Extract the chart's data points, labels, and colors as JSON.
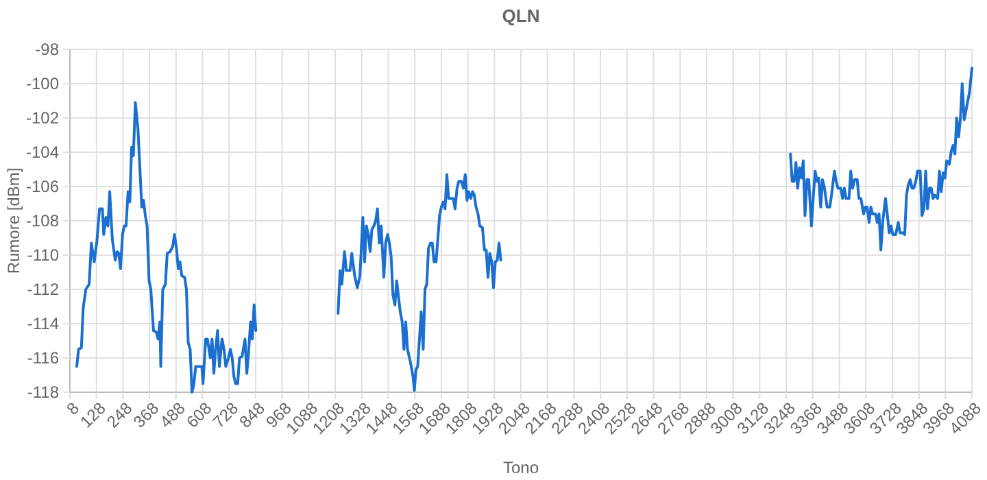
{
  "chart_data": {
    "type": "line",
    "title": "QLN",
    "xlabel": "Tono",
    "ylabel": "Rumore [dBm]",
    "xlim": [
      8,
      4088
    ],
    "xticks": [
      8,
      128,
      248,
      368,
      488,
      608,
      728,
      848,
      968,
      1088,
      1208,
      1328,
      1448,
      1568,
      1688,
      1808,
      1928,
      2048,
      2168,
      2288,
      2408,
      2528,
      2648,
      2768,
      2888,
      3008,
      3128,
      3248,
      3368,
      3488,
      3608,
      3728,
      3848,
      3968,
      4088
    ],
    "ylim": [
      -118,
      -98
    ],
    "yticks": [
      -118,
      -116,
      -114,
      -112,
      -110,
      -108,
      -106,
      -104,
      -102,
      -100,
      -98
    ],
    "grid": true,
    "marker": "none",
    "line_style": "solid",
    "series": [
      {
        "color": "#1a6fd0",
        "x": [
          39,
          47,
          60,
          68,
          80,
          95,
          105,
          118,
          130,
          142,
          155,
          161,
          171,
          180,
          188,
          200,
          213,
          221,
          229,
          237,
          246,
          254,
          262,
          271,
          279,
          287,
          295,
          304,
          316,
          324,
          333,
          341,
          349,
          357,
          366,
          374,
          386,
          399,
          407,
          415,
          419,
          428,
          440,
          448,
          461,
          473,
          481,
          490,
          498,
          506,
          514,
          527,
          535,
          543,
          552,
          560,
          568,
          577,
          593,
          605,
          610,
          622,
          630,
          643,
          651,
          659,
          667,
          676,
          684,
          696,
          705,
          713,
          725,
          734,
          742,
          750,
          758,
          767,
          775,
          787,
          800,
          808,
          816,
          825,
          833,
          841,
          849,
          1000,
          1221,
          1230,
          1238,
          1250,
          1258,
          1267,
          1275,
          1283,
          1296,
          1308,
          1320,
          1333,
          1341,
          1349,
          1358,
          1366,
          1374,
          1383,
          1391,
          1399,
          1407,
          1416,
          1428,
          1436,
          1445,
          1453,
          1461,
          1469,
          1478,
          1486,
          1502,
          1511,
          1519,
          1527,
          1535,
          1544,
          1552,
          1560,
          1566,
          1573,
          1581,
          1589,
          1597,
          1606,
          1614,
          1622,
          1630,
          1639,
          1647,
          1655,
          1664,
          1672,
          1680,
          1688,
          1697,
          1705,
          1713,
          1721,
          1730,
          1742,
          1750,
          1759,
          1767,
          1779,
          1788,
          1796,
          1804,
          1812,
          1821,
          1829,
          1837,
          1845,
          1854,
          1862,
          1874,
          1883,
          1891,
          1899,
          1907,
          1916,
          1924,
          1932,
          1941,
          1949,
          1957,
          2500,
          3267,
          3275,
          3284,
          3292,
          3300,
          3308,
          3317,
          3325,
          3333,
          3342,
          3350,
          3362,
          3371,
          3379,
          3387,
          3395,
          3404,
          3412,
          3420,
          3433,
          3445,
          3453,
          3466,
          3474,
          3482,
          3495,
          3503,
          3511,
          3519,
          3532,
          3540,
          3548,
          3557,
          3569,
          3577,
          3586,
          3598,
          3606,
          3614,
          3623,
          3631,
          3639,
          3652,
          3660,
          3668,
          3676,
          3685,
          3697,
          3705,
          3714,
          3722,
          3730,
          3743,
          3755,
          3763,
          3776,
          3784,
          3792,
          3800,
          3809,
          3817,
          3825,
          3834,
          3842,
          3854,
          3862,
          3871,
          3879,
          3887,
          3896,
          3904,
          3912,
          3920,
          3933,
          3941,
          3949,
          3958,
          3966,
          3974,
          3986,
          3995,
          4003,
          4011,
          4019,
          4028,
          4036,
          4044,
          4053,
          4065,
          4077,
          4088
        ],
        "values": [
          -116.5,
          -115.5,
          -115.4,
          -113.1,
          -112,
          -111.7,
          -109.3,
          -110.4,
          -109.2,
          -107.3,
          -107.3,
          -108.8,
          -107.8,
          -108.3,
          -106.3,
          -109.1,
          -110.3,
          -109.8,
          -109.9,
          -110.8,
          -108.8,
          -108.3,
          -108.3,
          -106.3,
          -106.9,
          -103.7,
          -104.2,
          -101.1,
          -102.7,
          -104.8,
          -107.2,
          -106.8,
          -107.7,
          -108.3,
          -111.5,
          -112,
          -114.4,
          -114.5,
          -114.9,
          -113.9,
          -116.5,
          -112,
          -111.7,
          -109.9,
          -109.8,
          -109.5,
          -108.8,
          -109.6,
          -110.8,
          -110.4,
          -111.2,
          -111.3,
          -112,
          -115.1,
          -115.5,
          -118,
          -117.6,
          -116.5,
          -116.5,
          -116.5,
          -117.5,
          -114.9,
          -114.9,
          -116,
          -114.9,
          -116.9,
          -115.5,
          -114.4,
          -116.5,
          -114.9,
          -115.5,
          -116.5,
          -116,
          -115.5,
          -116,
          -117.1,
          -117.5,
          -117.5,
          -116,
          -115.9,
          -114.9,
          -116.9,
          -115.7,
          -113.9,
          -114.9,
          -112.9,
          -114.4,
          null,
          -113.4,
          -110.9,
          -111.7,
          -109.8,
          -110.9,
          -110.9,
          -110.9,
          -109.9,
          -111.2,
          -111.9,
          -111.2,
          -107.8,
          -110.4,
          -108.3,
          -108.8,
          -109.8,
          -108.5,
          -108.3,
          -108,
          -107.3,
          -109.3,
          -108.3,
          -111.3,
          -109.3,
          -108.8,
          -109.3,
          -110.1,
          -112.3,
          -112.9,
          -111.5,
          -113.3,
          -113.9,
          -115.5,
          -113.9,
          -115.5,
          -116,
          -116.5,
          -117.1,
          -117.9,
          -116.7,
          -116.5,
          -114.9,
          -113.3,
          -115.5,
          -112,
          -111.7,
          -109.6,
          -109.3,
          -109.3,
          -110.4,
          -110.4,
          -109.1,
          -107.7,
          -107.2,
          -106.9,
          -107.3,
          -105.3,
          -106.7,
          -106.7,
          -106.7,
          -107.3,
          -106.1,
          -105.7,
          -105.7,
          -106.1,
          -105.3,
          -106.8,
          -106.3,
          -106.7,
          -106.3,
          -106.5,
          -107.2,
          -107.6,
          -108.3,
          -108.4,
          -109.7,
          -109.7,
          -111.3,
          -109.9,
          -110.4,
          -111.9,
          -110.4,
          -110.3,
          -109.3,
          -110.3,
          null,
          -104.1,
          -105.7,
          -105.7,
          -104.6,
          -106.1,
          -104.9,
          -105.5,
          -104.5,
          -107.7,
          -105.6,
          -105.6,
          -108.3,
          -106.5,
          -105.1,
          -105.7,
          -105.5,
          -107.2,
          -105.6,
          -106,
          -107.2,
          -107.2,
          -106.5,
          -105.1,
          -105.7,
          -106.1,
          -106.1,
          -106.7,
          -106.1,
          -106.7,
          -106.7,
          -105.1,
          -106.1,
          -105.6,
          -105.6,
          -106.7,
          -106.7,
          -107.6,
          -107.2,
          -107.2,
          -108.1,
          -107.2,
          -107.6,
          -107.6,
          -108.1,
          -107.6,
          -109.7,
          -108,
          -106.7,
          -107.6,
          -108.7,
          -108.3,
          -108.8,
          -108.8,
          -108.1,
          -108.7,
          -108.7,
          -108.8,
          -106.5,
          -105.9,
          -105.6,
          -106.1,
          -106.1,
          -105.7,
          -105.1,
          -105.1,
          -107.7,
          -107.3,
          -105.1,
          -107.3,
          -106.1,
          -106.1,
          -106.7,
          -106.5,
          -106.7,
          -105.1,
          -106.3,
          -105.2,
          -105.5,
          -104.5,
          -104.7,
          -103.9,
          -103.6,
          -104.1,
          -102,
          -103.1,
          -102,
          -100,
          -102.1,
          -101.3,
          -100.5,
          -99.1
        ]
      }
    ]
  }
}
